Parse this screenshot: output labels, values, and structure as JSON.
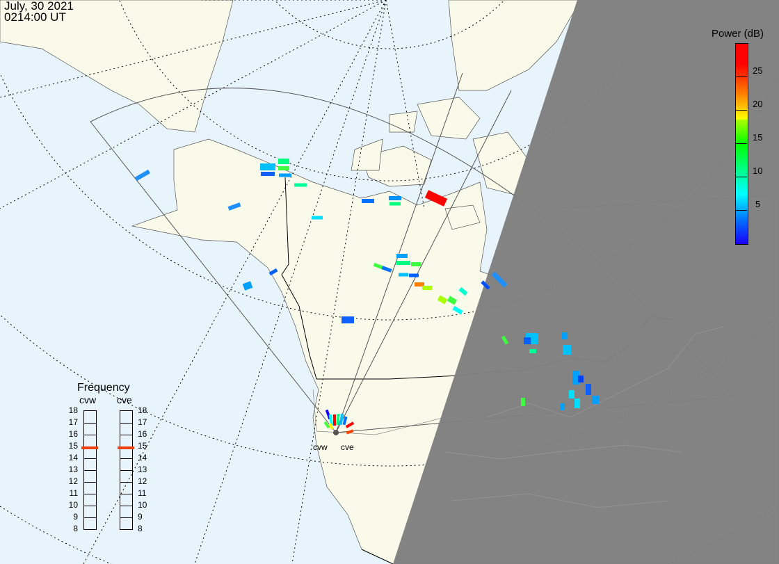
{
  "header": {
    "date": "July, 30 2021",
    "time": "0214:00 UT"
  },
  "colorbar": {
    "title": "Power (dB)",
    "ticks": [
      "25",
      "20",
      "15",
      "10",
      "5"
    ],
    "colors": [
      "#1a00ff",
      "#0070ff",
      "#00ffff",
      "#00ff80",
      "#00ff00",
      "#ffff00",
      "#ff8000",
      "#ff0000"
    ]
  },
  "frequency": {
    "title": "Frequency",
    "radars": [
      {
        "name": "cvw",
        "value_mhz": 14.9
      },
      {
        "name": "cve",
        "value_mhz": 14.9
      }
    ],
    "scale": [
      "18",
      "17",
      "16",
      "15",
      "14",
      "13",
      "12",
      "11",
      "10",
      "9",
      "8"
    ],
    "marker_color": "#f04010"
  },
  "sites": {
    "west": "cvw",
    "east": "cve"
  },
  "colors": {
    "ocean": "#e8f4fc",
    "land": "#fafaeb",
    "night": "#7f7f7f"
  }
}
